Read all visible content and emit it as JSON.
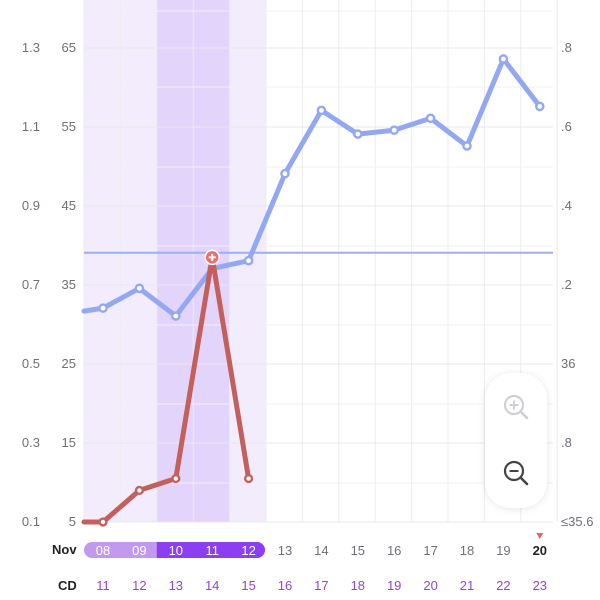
{
  "chart_data": {
    "type": "line",
    "categories": [
      "11",
      "12",
      "13",
      "14",
      "15",
      "16",
      "17",
      "18",
      "19",
      "20",
      "21",
      "22",
      "23"
    ],
    "date_row": {
      "label": "Nov",
      "dates": [
        "08",
        "09",
        "10",
        "11",
        "12",
        "13",
        "14",
        "15",
        "16",
        "17",
        "18",
        "19",
        "20"
      ],
      "today_index": 12
    },
    "cd_row": {
      "label": "CD"
    },
    "left_axis_outer": {
      "ticks": [
        "1.3",
        "1.1",
        "0.9",
        "0.7",
        "0.5",
        "0.3",
        "0.1"
      ]
    },
    "left_axis_inner": {
      "ticks": [
        "65",
        "55",
        "45",
        "35",
        "25",
        "15",
        "5"
      ]
    },
    "right_axis": {
      "ticks": [
        ".8",
        ".6",
        ".4",
        ".2",
        "36",
        ".8",
        "≤35.6"
      ]
    },
    "series": [
      {
        "color": "#94a8f2",
        "points": [
          {
            "cd": "11",
            "value": 36.14
          },
          {
            "cd": "12",
            "value": 36.19
          },
          {
            "cd": "13",
            "value": 36.12
          },
          {
            "cd": "14",
            "value": 36.24
          },
          {
            "cd": "15",
            "value": 36.26
          },
          {
            "cd": "16",
            "value": 36.48
          },
          {
            "cd": "17",
            "value": 36.64
          },
          {
            "cd": "18",
            "value": 36.58
          },
          {
            "cd": "19",
            "value": 36.59
          },
          {
            "cd": "20",
            "value": 36.62
          },
          {
            "cd": "21",
            "value": 36.55
          },
          {
            "cd": "22",
            "value": 36.77
          },
          {
            "cd": "23",
            "value": 36.65
          }
        ]
      },
      {
        "color": "#c4605c",
        "points": [
          {
            "cd": "11",
            "value": 5
          },
          {
            "cd": "12",
            "value": 9
          },
          {
            "cd": "13",
            "value": 10.5
          },
          {
            "cd": "14",
            "value": 38.5
          },
          {
            "cd": "15",
            "value": 10.5
          }
        ],
        "peak_cd": "14"
      }
    ],
    "coverline": 36.28,
    "fertile_window": [
      "11",
      "15"
    ],
    "peak_window": [
      "13",
      "14"
    ]
  },
  "zoom": {
    "in_icon": "zoom-in-icon",
    "out_icon": "zoom-out-icon"
  }
}
